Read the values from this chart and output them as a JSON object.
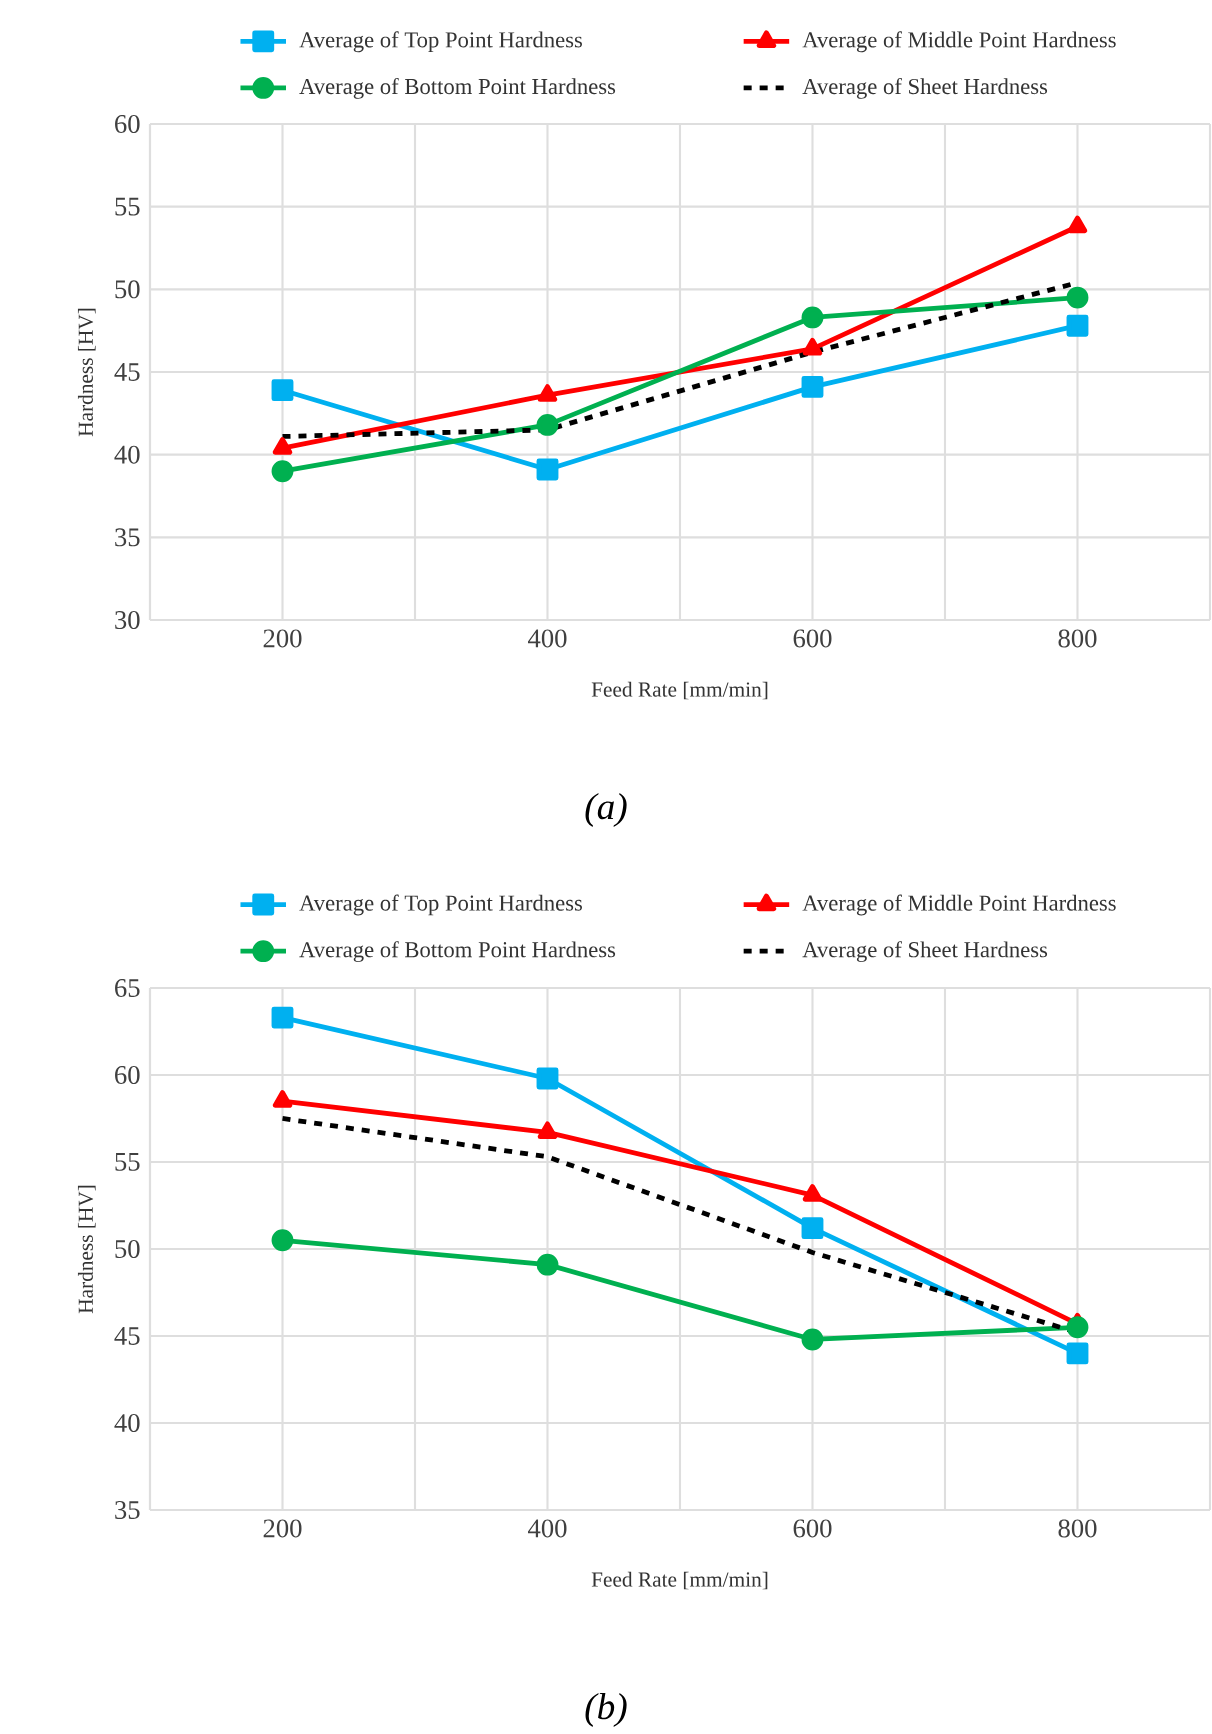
{
  "chart_data": [
    {
      "type": "line",
      "xlabel": "Feed Rate [mm/min]",
      "ylabel": "Hardness [HV]",
      "x": [
        200,
        400,
        600,
        800
      ],
      "xlim": [
        100,
        900
      ],
      "xticks": [
        {
          "value": 100,
          "label": null
        },
        200,
        {
          "value": 300,
          "label": null
        },
        400,
        {
          "value": 500,
          "label": null
        },
        600,
        {
          "value": 700,
          "label": null
        },
        800,
        {
          "value": 900,
          "label": null
        }
      ],
      "ylim": [
        30,
        60
      ],
      "yticks": [
        30,
        35,
        40,
        45,
        50,
        55,
        60
      ],
      "grid": true,
      "legend": "top",
      "series": [
        {
          "name": "Average of Top Point Hardness",
          "color": "#00b0f0",
          "marker": "square",
          "line_style": "solid",
          "values": [
            43.9,
            39.1,
            44.1,
            47.8
          ]
        },
        {
          "name": "Average of Middle Point  Hardness",
          "color": "#ff0000",
          "marker": "triangle",
          "line_style": "solid",
          "values": [
            40.4,
            43.6,
            46.4,
            53.8
          ]
        },
        {
          "name": "Average of Bottom Point Hardness",
          "color": "#00b050",
          "marker": "circle",
          "line_style": "solid",
          "values": [
            39.0,
            41.8,
            48.3,
            49.5
          ]
        },
        {
          "name": "Average of Sheet Hardness",
          "color": "#000000",
          "marker": "none",
          "line_style": "dashed",
          "values": [
            41.1,
            41.5,
            46.2,
            50.4
          ]
        }
      ],
      "annotations": [
        "*(a)*"
      ]
    },
    {
      "type": "line",
      "xlabel": "Feed Rate [mm/min]",
      "ylabel": "Hardness [HV]",
      "x": [
        200,
        400,
        600,
        800
      ],
      "xlim": [
        100,
        900
      ],
      "xticks": [
        {
          "value": 100,
          "label": null
        },
        200,
        {
          "value": 300,
          "label": null
        },
        400,
        {
          "value": 500,
          "label": null
        },
        600,
        {
          "value": 700,
          "label": null
        },
        800,
        {
          "value": 900,
          "label": null
        }
      ],
      "ylim": [
        35,
        65
      ],
      "yticks": [
        35,
        40,
        45,
        50,
        55,
        60,
        65
      ],
      "grid": true,
      "legend": "top",
      "series": [
        {
          "name": "Average of Top Point Hardness",
          "color": "#00b0f0",
          "marker": "square",
          "line_style": "solid",
          "values": [
            63.3,
            59.8,
            51.2,
            44.0
          ]
        },
        {
          "name": "Average of Middle Point  Hardness",
          "color": "#ff0000",
          "marker": "triangle",
          "line_style": "solid",
          "values": [
            58.5,
            56.7,
            53.1,
            45.7
          ]
        },
        {
          "name": "Average of Bottom Point Hardness",
          "color": "#00b050",
          "marker": "circle",
          "line_style": "solid",
          "values": [
            50.5,
            49.1,
            44.8,
            45.5
          ]
        },
        {
          "name": "Average of Sheet Hardness",
          "color": "#000000",
          "marker": "none",
          "line_style": "dashed",
          "values": [
            57.5,
            55.3,
            49.8,
            45.2
          ]
        }
      ],
      "annotations": [
        "*(b)*"
      ]
    }
  ]
}
